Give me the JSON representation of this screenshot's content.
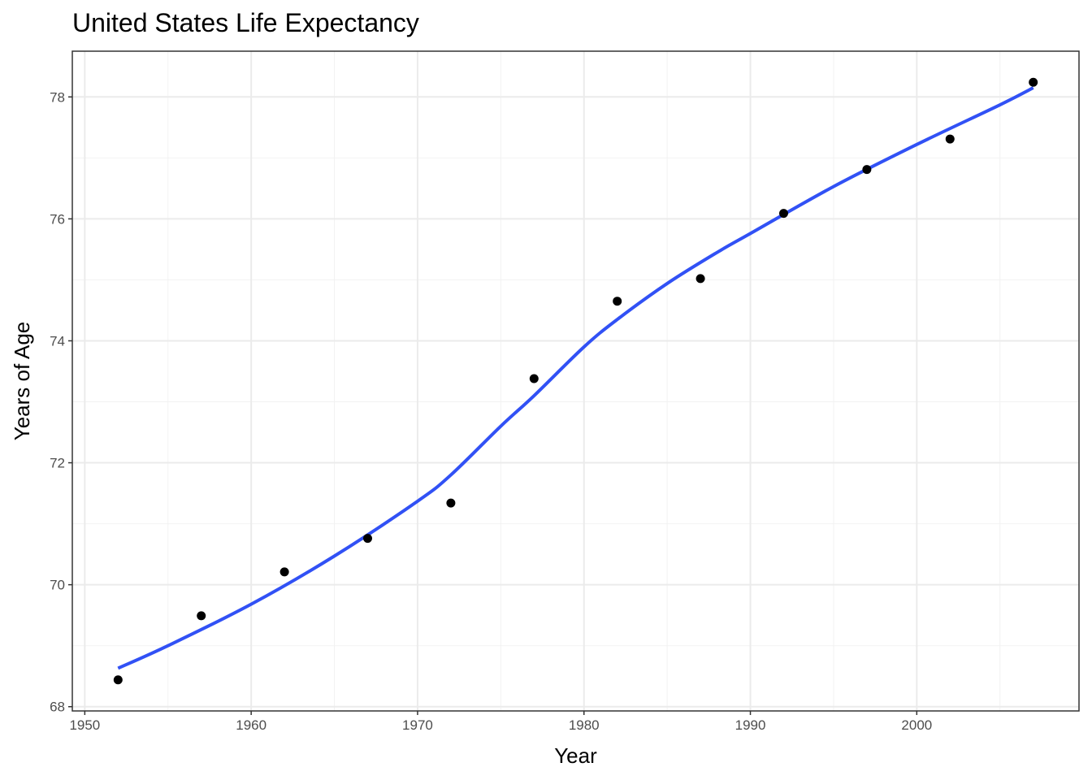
{
  "chart_data": {
    "type": "scatter",
    "title": "United States Life Expectancy",
    "xlabel": "Year",
    "ylabel": "Years of Age",
    "xlim": [
      1949.25,
      2009.75
    ],
    "ylim": [
      67.93,
      78.75
    ],
    "xticks": [
      1950,
      1960,
      1970,
      1980,
      1990,
      2000
    ],
    "yticks": [
      68,
      70,
      72,
      74,
      76,
      78
    ],
    "grid": true,
    "points": {
      "x": [
        1952,
        1957,
        1962,
        1967,
        1972,
        1977,
        1982,
        1987,
        1992,
        1997,
        2002,
        2007
      ],
      "y": [
        68.44,
        69.49,
        70.21,
        70.76,
        71.34,
        73.38,
        74.65,
        75.02,
        76.09,
        76.81,
        77.31,
        78.24
      ]
    },
    "smooth_line": {
      "x": [
        1952,
        1955,
        1960,
        1965,
        1970,
        1972,
        1975,
        1977,
        1980,
        1982,
        1985,
        1988,
        1990,
        1995,
        2000,
        2005,
        2007
      ],
      "y": [
        68.63,
        69.0,
        69.68,
        70.47,
        71.37,
        71.8,
        72.6,
        73.1,
        73.9,
        74.35,
        74.94,
        75.45,
        75.76,
        76.53,
        77.22,
        77.87,
        78.15
      ]
    },
    "colors": {
      "points": "#000000",
      "line": "#3151f5",
      "grid_major": "#ebebeb",
      "grid_minor": "#f2f2f2",
      "panel_border": "#333333",
      "tick_text": "#4d4d4d"
    }
  }
}
